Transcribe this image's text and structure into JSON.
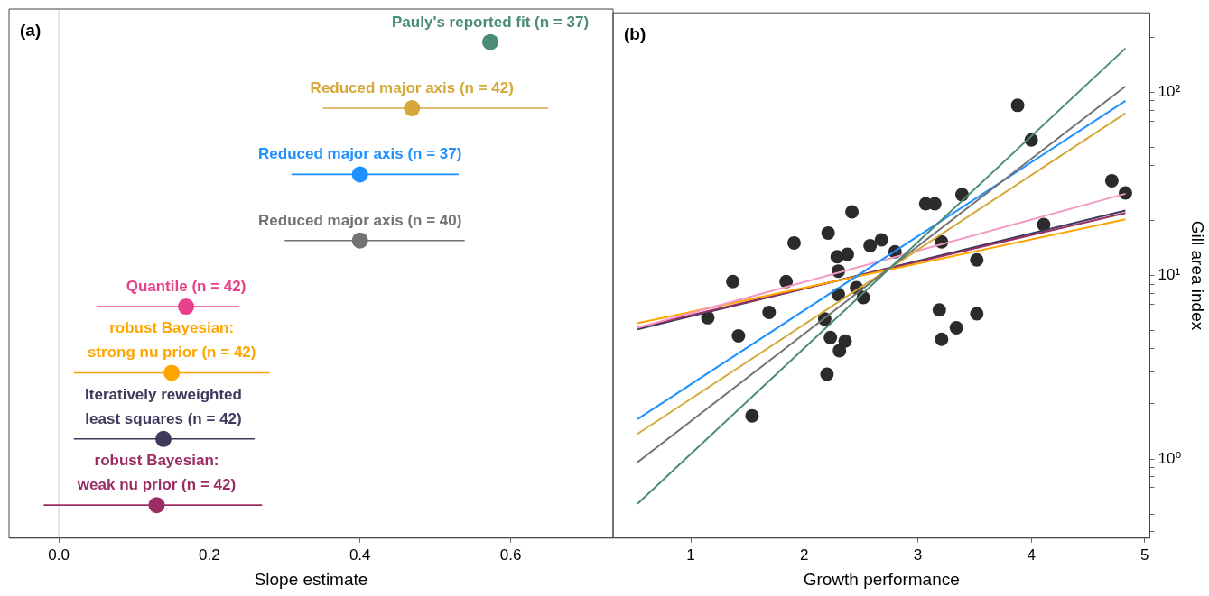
{
  "chart_data": [
    {
      "type": "scatter",
      "orientation": "horizontal",
      "xlabel": "Slope estimate",
      "annotations": [
        "(a)"
      ],
      "tick_labels": "x",
      "marker": "circle",
      "categories": [
        "Pauly's reported fit (n = 37)",
        "Reduced major axis (n = 42)",
        "Reduced major axis (n = 37)",
        "Reduced major axis (n = 40)",
        "Quantile (n = 42)",
        "robust Bayesian:\nstrong nu prior (n = 42)",
        "Iteratively reweighted\nleast squares (n = 42)",
        "robust Bayesian:\nweak nu prior (n = 42)"
      ],
      "values": [
        0.573,
        0.469,
        0.4,
        0.4,
        0.169,
        0.15,
        0.139,
        0.13
      ],
      "errors": [
        null,
        [
          0.351,
          0.65
        ],
        [
          0.309,
          0.531
        ],
        [
          0.3,
          0.539
        ],
        [
          0.05,
          0.24
        ],
        [
          0.02,
          0.28
        ],
        [
          0.02,
          0.26
        ],
        [
          -0.02,
          0.27
        ]
      ],
      "colors": [
        "#4a8c74",
        "#d4a93a",
        "#1e90ff",
        "#737373",
        "#e8408a",
        "#ffa500",
        "#3d3a5c",
        "#9b2d65"
      ],
      "xlim": [
        -0.066,
        0.736
      ],
      "xticks": [
        {
          "value": 0,
          "label": "0.0"
        },
        0.2,
        0.4,
        0.6
      ],
      "ref_lines": [
        {
          "axis": "x",
          "value": 0,
          "color": "#cccccc"
        }
      ]
    },
    {
      "type": "scatter",
      "xlabel": "Growth performance",
      "ylabel": "Gill area index",
      "annotations": [
        "(b)"
      ],
      "log": "y",
      "xlim": [
        0.315,
        5.045
      ],
      "xticks": [
        1,
        2,
        3,
        4,
        5
      ],
      "ylim": [
        0.37,
        272
      ],
      "yticks": [
        {
          "value": 0.4,
          "label": null
        },
        {
          "value": 0.5,
          "label": null
        },
        {
          "value": 0.6,
          "label": null
        },
        {
          "value": 0.7,
          "label": null
        },
        {
          "value": 0.8,
          "label": null
        },
        {
          "value": 0.9,
          "label": null
        },
        {
          "value": 1,
          "label": "10⁰"
        },
        {
          "value": 2,
          "label": null
        },
        {
          "value": 3,
          "label": null
        },
        {
          "value": 4,
          "label": null
        },
        {
          "value": 5,
          "label": null
        },
        {
          "value": 6,
          "label": null
        },
        {
          "value": 7,
          "label": null
        },
        {
          "value": 8,
          "label": null
        },
        {
          "value": 9,
          "label": null
        },
        {
          "value": 10,
          "label": "10¹"
        },
        {
          "value": 20,
          "label": null
        },
        {
          "value": 30,
          "label": null
        },
        {
          "value": 40,
          "label": null
        },
        {
          "value": 50,
          "label": null
        },
        {
          "value": 60,
          "label": null
        },
        {
          "value": 70,
          "label": null
        },
        {
          "value": 80,
          "label": null
        },
        {
          "value": 90,
          "label": null
        },
        {
          "value": 100,
          "label": "10²"
        },
        {
          "value": 200,
          "label": null
        }
      ],
      "series": [
        {
          "type": "scatter",
          "marker": "circle",
          "color": "#2b2b2b",
          "x": [
            1.15,
            1.37,
            1.42,
            1.54,
            1.69,
            1.84,
            1.91,
            2.18,
            2.2,
            2.21,
            2.23,
            2.29,
            2.3,
            2.3,
            2.31,
            2.36,
            2.38,
            2.42,
            2.46,
            2.52,
            2.58,
            2.68,
            2.8,
            3.07,
            3.15,
            3.39,
            3.21,
            3.19,
            3.21,
            3.34,
            3.52,
            3.52,
            3.88,
            4.0,
            4.11,
            4.71,
            4.83
          ],
          "values": [
            5.9,
            9.3,
            4.7,
            1.72,
            6.3,
            9.3,
            15.1,
            5.8,
            2.9,
            17.1,
            4.6,
            12.7,
            7.9,
            10.6,
            3.9,
            4.4,
            13.1,
            22.3,
            8.6,
            7.6,
            14.6,
            15.7,
            13.5,
            24.7,
            24.7,
            27.7,
            15.3,
            6.5,
            4.5,
            5.2,
            12.2,
            6.2,
            85,
            55,
            19,
            33,
            28.3
          ]
        },
        {
          "type": "line",
          "marker": "none",
          "color": "#4a8c74",
          "x": [
            0.53,
            4.83
          ],
          "values": [
            0.57,
            174
          ]
        },
        {
          "type": "line",
          "marker": "none",
          "color": "#737373",
          "x": [
            0.53,
            4.83
          ],
          "values": [
            0.96,
            108
          ]
        },
        {
          "type": "line",
          "marker": "none",
          "color": "#d4a93a",
          "x": [
            0.53,
            4.83
          ],
          "values": [
            1.37,
            77
          ]
        },
        {
          "type": "line",
          "marker": "none",
          "color": "#1e90ff",
          "x": [
            0.53,
            4.83
          ],
          "values": [
            1.65,
            90
          ]
        },
        {
          "type": "line",
          "marker": "none",
          "color": "#f29ac4",
          "x": [
            0.53,
            4.83
          ],
          "values": [
            5.2,
            28
          ]
        },
        {
          "type": "line",
          "marker": "none",
          "color": "#ffa500",
          "x": [
            0.53,
            4.83
          ],
          "values": [
            5.5,
            20.3
          ]
        },
        {
          "type": "line",
          "marker": "none",
          "color": "#9b2d65",
          "x": [
            0.53,
            4.83
          ],
          "values": [
            5.2,
            22
          ]
        },
        {
          "type": "line",
          "marker": "none",
          "color": "#3d3a5c",
          "x": [
            0.53,
            4.83
          ],
          "values": [
            5.1,
            22.7
          ]
        }
      ]
    }
  ]
}
